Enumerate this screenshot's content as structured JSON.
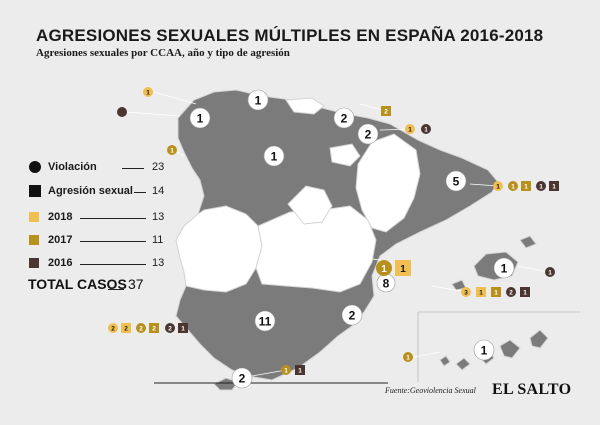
{
  "header": {
    "title": "AGRESIONES SEXUALES MÚLTIPLES EN ESPAÑA 2016-2018",
    "subtitle": "Agresiones sexuales por CCAA, año y tipo de agresión"
  },
  "legend": {
    "violacion_label": "Violación",
    "violacion_count": "23",
    "agresion_label": "Agresión sexual",
    "agresion_count": "14",
    "y2018_label": "2018",
    "y2018_count": "13",
    "y2017_label": "2017",
    "y2017_count": "11",
    "y2016_label": "2016",
    "y2016_count": "13",
    "total_label": "TOTAL CASOS",
    "total_count": "37"
  },
  "colors": {
    "background": "#ececec",
    "region_with_cases": "#7b7b7b",
    "region_no_cases": "#ffffff",
    "region_border": "#d4d4d4",
    "year_2018": "#f0bf52",
    "year_2017": "#b8901e",
    "year_2016": "#4a3530"
  },
  "region_totals": [
    {
      "id": "galicia",
      "count": "1"
    },
    {
      "id": "asturias",
      "count": "1"
    },
    {
      "id": "pais-vasco",
      "count": "2"
    },
    {
      "id": "navarra",
      "count": "2"
    },
    {
      "id": "castilla-leon",
      "count": "1"
    },
    {
      "id": "cataluna",
      "count": "5"
    },
    {
      "id": "valencia",
      "count": "8"
    },
    {
      "id": "murcia",
      "count": "2"
    },
    {
      "id": "andalucia",
      "count": "11"
    },
    {
      "id": "baleares",
      "count": "1"
    },
    {
      "id": "canarias",
      "count": "1"
    },
    {
      "id": "ceuta",
      "count": "2"
    }
  ],
  "case_markers": [
    {
      "region": "galicia",
      "items": [
        {
          "shape": "circle",
          "year": "2018",
          "count": "1"
        },
        {
          "shape": "circle",
          "year": "2016",
          "count": ""
        }
      ]
    },
    {
      "region": "castilla-leon",
      "items": [
        {
          "shape": "circle",
          "year": "2017",
          "count": "1"
        }
      ]
    },
    {
      "region": "pais-vasco",
      "items": [
        {
          "shape": "square",
          "year": "2017",
          "count": "2"
        }
      ]
    },
    {
      "region": "navarra",
      "items": [
        {
          "shape": "circle",
          "year": "2018",
          "count": "1"
        },
        {
          "shape": "circle",
          "year": "2016",
          "count": "1"
        }
      ]
    },
    {
      "region": "cataluna",
      "items": [
        {
          "shape": "circle",
          "year": "2018",
          "count": "1"
        },
        {
          "shape": "circle",
          "year": "2017",
          "count": "1"
        },
        {
          "shape": "square",
          "year": "2017",
          "count": "1"
        },
        {
          "shape": "circle",
          "year": "2016",
          "count": "1"
        },
        {
          "shape": "square",
          "year": "2016",
          "count": "1"
        }
      ]
    },
    {
      "region": "valencia",
      "items": [
        {
          "shape": "circle",
          "year": "2017",
          "count": "1"
        },
        {
          "shape": "square",
          "year": "2018",
          "count": "1"
        }
      ]
    },
    {
      "region": "valencia-right",
      "items": [
        {
          "shape": "circle",
          "year": "2018",
          "count": "3"
        },
        {
          "shape": "square",
          "year": "2018",
          "count": "1"
        },
        {
          "shape": "square",
          "year": "2017",
          "count": "1"
        },
        {
          "shape": "circle",
          "year": "2016",
          "count": "2"
        },
        {
          "shape": "square",
          "year": "2016",
          "count": "1"
        }
      ]
    },
    {
      "region": "andalucia",
      "items": [
        {
          "shape": "circle",
          "year": "2018",
          "count": "2"
        },
        {
          "shape": "square",
          "year": "2018",
          "count": "2"
        },
        {
          "shape": "circle",
          "year": "2017",
          "count": "2"
        },
        {
          "shape": "square",
          "year": "2017",
          "count": "2"
        },
        {
          "shape": "circle",
          "year": "2016",
          "count": "2"
        },
        {
          "shape": "square",
          "year": "2016",
          "count": "1"
        }
      ]
    },
    {
      "region": "baleares",
      "items": [
        {
          "shape": "circle",
          "year": "2016",
          "count": "1"
        }
      ]
    },
    {
      "region": "canarias",
      "items": [
        {
          "shape": "circle",
          "year": "2017",
          "count": "1"
        }
      ]
    },
    {
      "region": "ceuta",
      "items": [
        {
          "shape": "circle",
          "year": "2017",
          "count": "1"
        },
        {
          "shape": "square",
          "year": "2016",
          "count": "1"
        }
      ]
    }
  ],
  "footer": {
    "source": "Fuente:Geoviolencia Sexual",
    "brand": "EL SALTO"
  }
}
